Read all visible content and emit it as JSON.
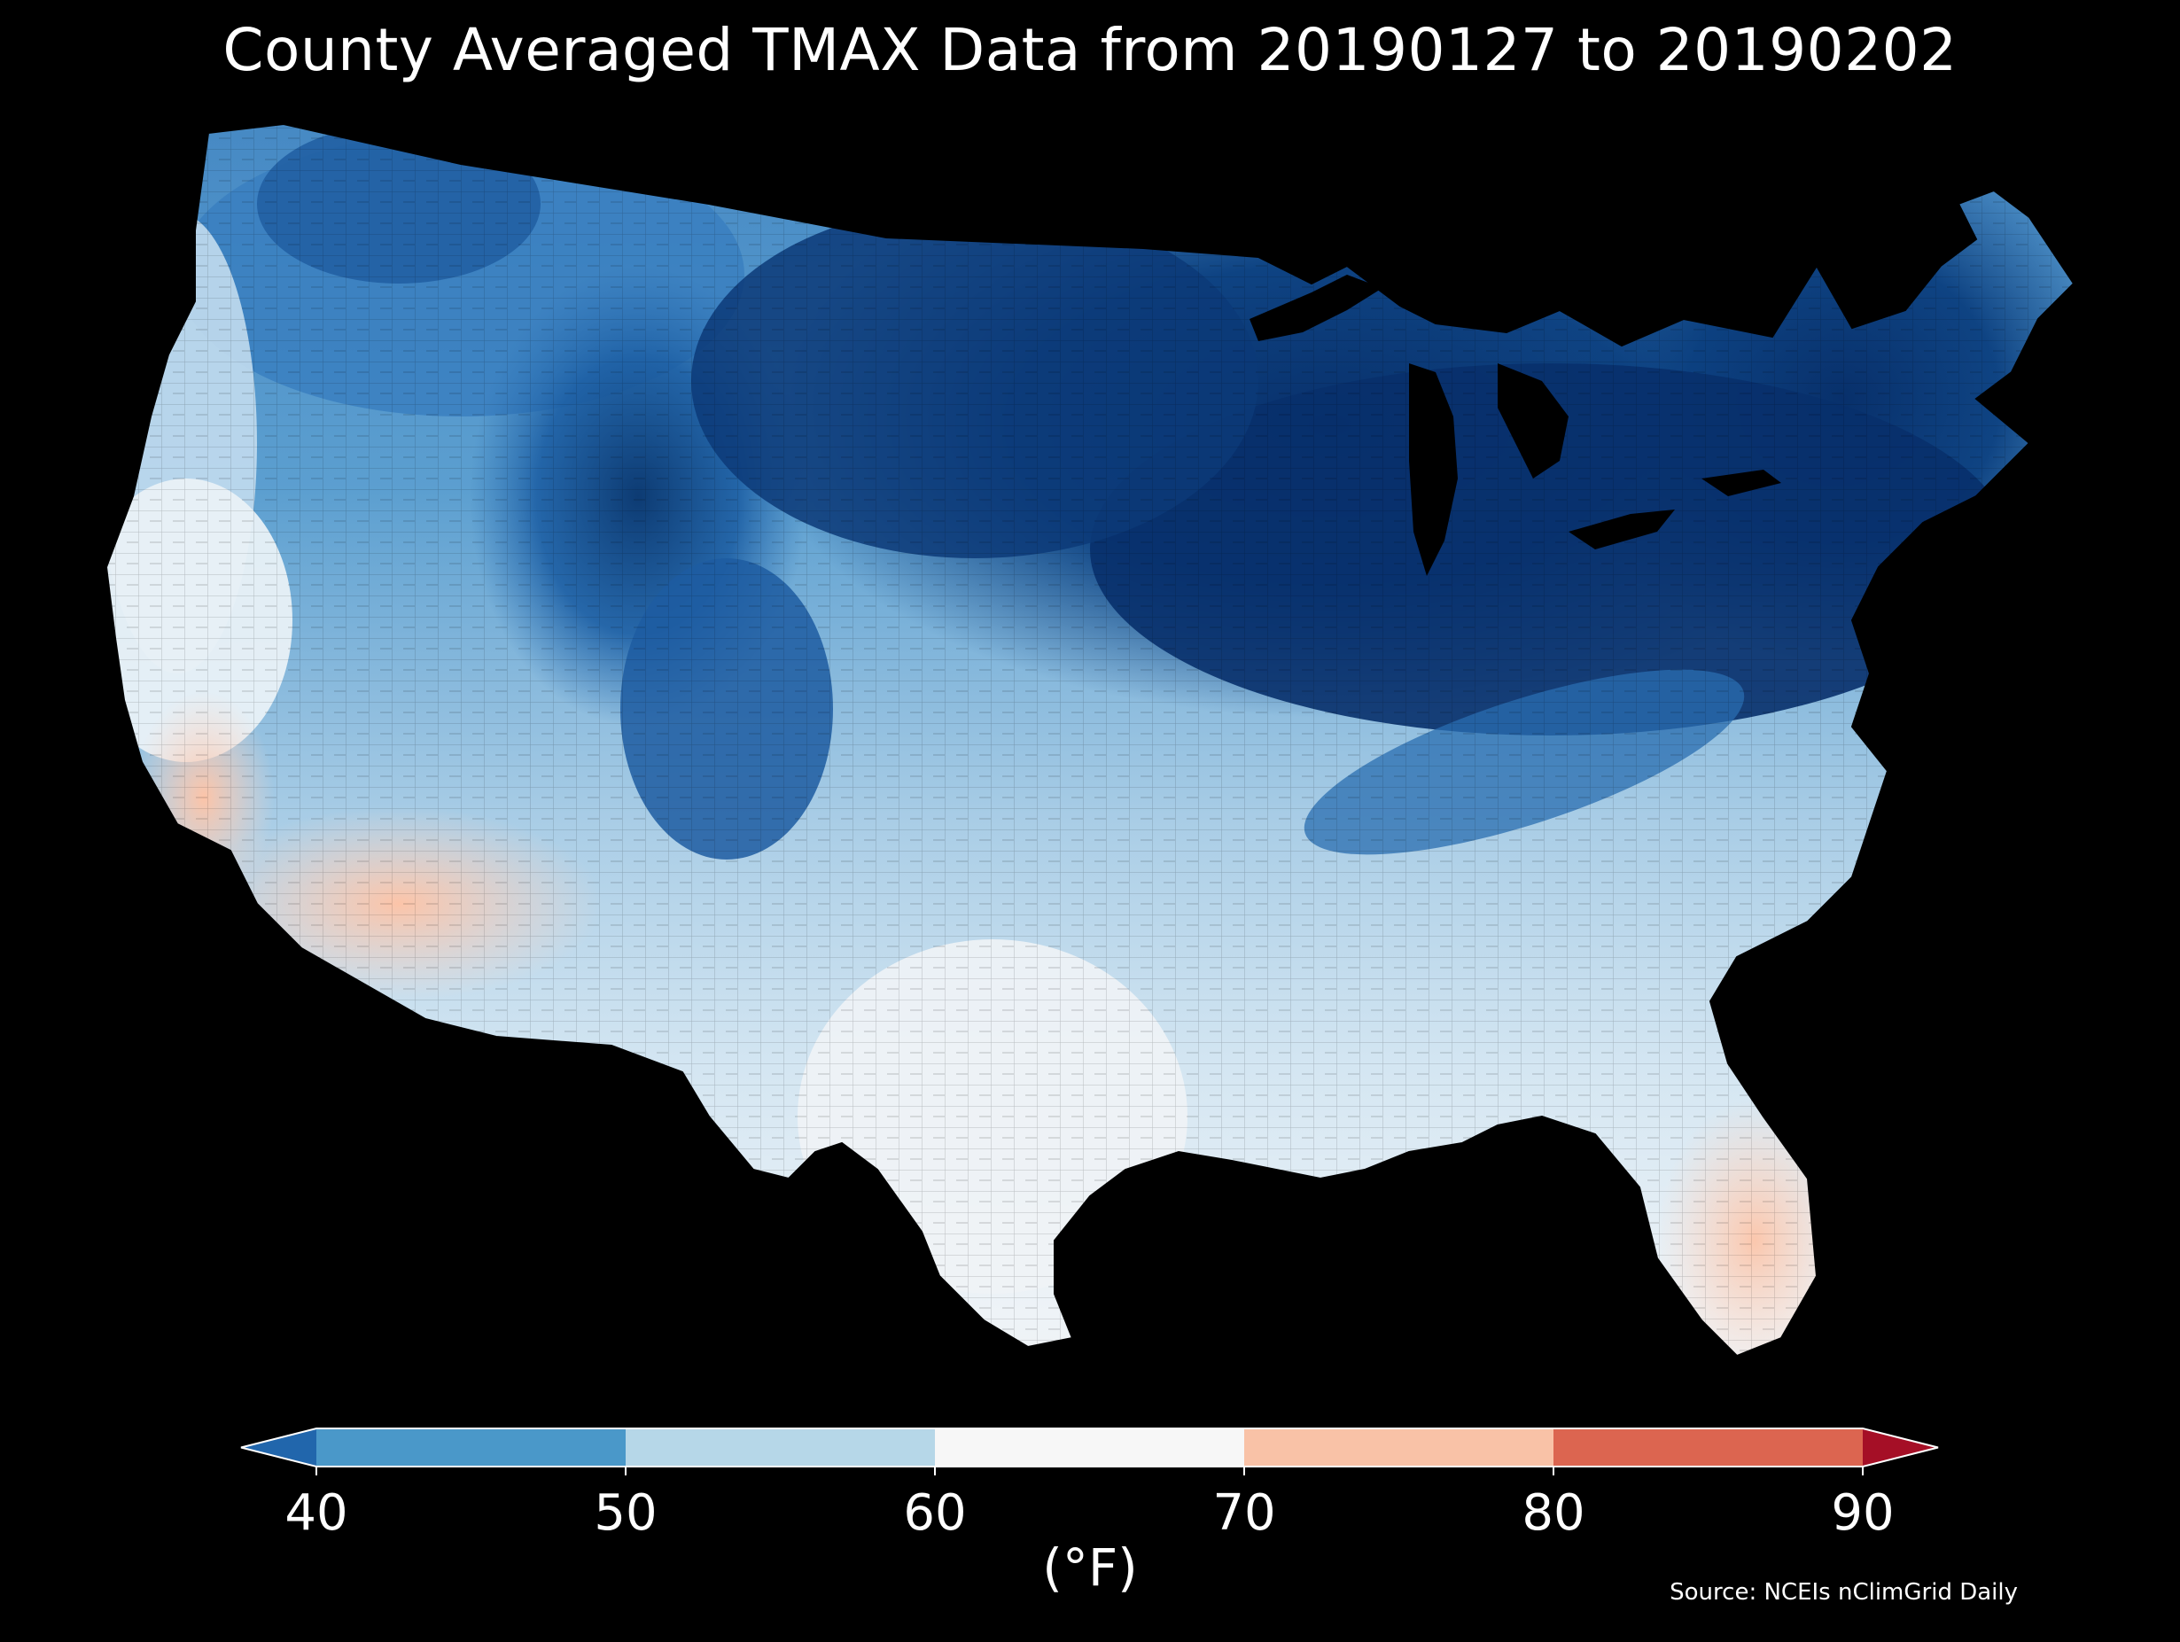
{
  "title": "County Averaged TMAX Data from 20190127 to 20190202",
  "colorbar": {
    "ticks": [
      "40",
      "50",
      "60",
      "70",
      "80",
      "90"
    ],
    "unit": "(°F)",
    "bins": [
      {
        "from": 30,
        "to": 40,
        "color": "#2166ac"
      },
      {
        "from": 40,
        "to": 50,
        "color": "#4a98c9"
      },
      {
        "from": 50,
        "to": 60,
        "color": "#b6d7e8"
      },
      {
        "from": 60,
        "to": 70,
        "color": "#f7f7f7"
      },
      {
        "from": 70,
        "to": 80,
        "color": "#f9c2a7"
      },
      {
        "from": 80,
        "to": 90,
        "color": "#dc6550"
      },
      {
        "from": 90,
        "to": 100,
        "color": "#a50f26"
      }
    ]
  },
  "source": "Source: NCEIs nClimGrid Daily",
  "map_colors": {
    "coldest": "#08306b",
    "cold": "#2171b5",
    "cool": "#6baed6",
    "mild": "#c6dbef",
    "neutral": "#f4f6f8",
    "warm": "#fbd6c4"
  }
}
